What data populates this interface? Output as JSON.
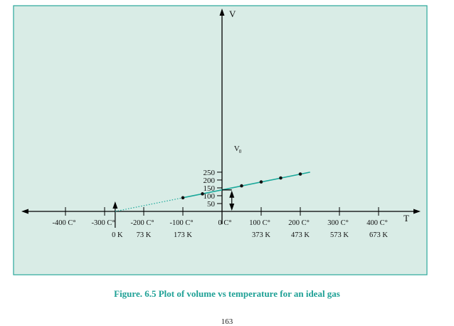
{
  "chart_data": {
    "type": "line",
    "x_values_unit": "C°",
    "y_axis_label": "V",
    "x_axis_label": "T",
    "xlim": [
      -500,
      500
    ],
    "ylim": [
      0,
      250
    ],
    "y_ticks": [
      50,
      100,
      150,
      200,
      250
    ],
    "y_tick_labels": [
      "50",
      "100",
      "150",
      "200",
      "250"
    ],
    "celsius_ticks": [
      {
        "value": -400,
        "label": "-400 C°"
      },
      {
        "value": -300,
        "label": "-300 C°"
      },
      {
        "value": -200,
        "label": "-200 C°"
      },
      {
        "value": -100,
        "label": "-100 C°"
      },
      {
        "value": 0,
        "label": "0 C°"
      },
      {
        "value": 100,
        "label": "100 C°"
      },
      {
        "value": 200,
        "label": "200 C°"
      },
      {
        "value": 300,
        "label": "300 C°"
      },
      {
        "value": 400,
        "label": "400 C°"
      }
    ],
    "kelvin_ticks": [
      {
        "value": -273,
        "label": "0 K"
      },
      {
        "value": -200,
        "label": "73 K"
      },
      {
        "value": -100,
        "label": "173 K"
      },
      {
        "value": 100,
        "label": "373 K"
      },
      {
        "value": 200,
        "label": "473 K"
      },
      {
        "value": 300,
        "label": "573 K"
      },
      {
        "value": 400,
        "label": "673 K"
      }
    ],
    "series": [
      {
        "solid_line": {
          "x": [
            -100,
            225
          ],
          "y": [
            87,
            250
          ]
        },
        "extrapolated_dotted": {
          "x": [
            -273,
            -100
          ],
          "y": [
            0,
            87
          ]
        },
        "points": {
          "x": [
            -100,
            -50,
            50,
            100,
            150,
            200
          ],
          "y": [
            87,
            112,
            163,
            188,
            213,
            238
          ]
        }
      }
    ],
    "annotation": {
      "label": "V",
      "label_subscript": "0",
      "at_x": 25,
      "from_y": 0,
      "to_y": 137
    },
    "colors": {
      "line": "#1aa89a",
      "background": "#d9ece6",
      "border": "#2aa89b",
      "caption": "#1ea095",
      "axis": "#000000"
    }
  },
  "caption": "Figure. 6.5 Plot of volume vs temperature for an ideal gas",
  "page_number": "163"
}
